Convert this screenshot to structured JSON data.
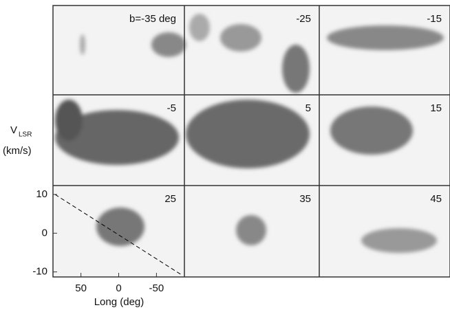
{
  "chart_data": {
    "type": "panel-grid",
    "panels": [
      "b=-35 deg",
      "-25",
      "-15",
      "-5",
      "5",
      "15",
      "25",
      "35",
      "45"
    ],
    "ylabel": "V",
    "ylabel_subscript": "LSR",
    "ylabel_unit": "(km/s)",
    "xlabel": "Long (deg)",
    "xlim": [
      87,
      -87
    ],
    "xticks": [
      50,
      0,
      -50
    ],
    "ylim": [
      -11.3,
      12.3
    ],
    "yticks": [
      10,
      0,
      -10
    ]
  }
}
